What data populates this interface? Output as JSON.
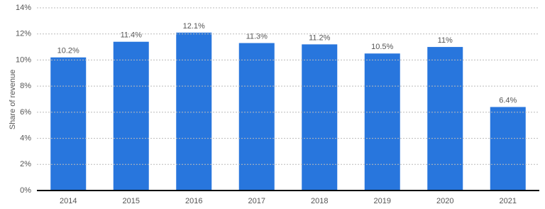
{
  "chart_data": {
    "type": "bar",
    "y_label": "Share of revenue",
    "categories": [
      "2014",
      "2015",
      "2016",
      "2017",
      "2018",
      "2019",
      "2020",
      "2021"
    ],
    "values": [
      10.2,
      11.4,
      12.1,
      11.3,
      11.2,
      10.5,
      11,
      6.4
    ],
    "value_labels": [
      "10.2%",
      "11.4%",
      "12.1%",
      "11.3%",
      "11.2%",
      "10.5%",
      "11%",
      "6.4%"
    ],
    "color": "#2876dd",
    "ylim": [
      0,
      14
    ],
    "yticks": [
      {
        "value": 0,
        "label": "0%"
      },
      {
        "value": 2,
        "label": "2%"
      },
      {
        "value": 4,
        "label": "4%"
      },
      {
        "value": 6,
        "label": "6%"
      },
      {
        "value": 8,
        "label": "8%"
      },
      {
        "value": 10,
        "label": "10%"
      },
      {
        "value": 12,
        "label": "12%"
      },
      {
        "value": 14,
        "label": "14%"
      }
    ],
    "grid": true
  }
}
